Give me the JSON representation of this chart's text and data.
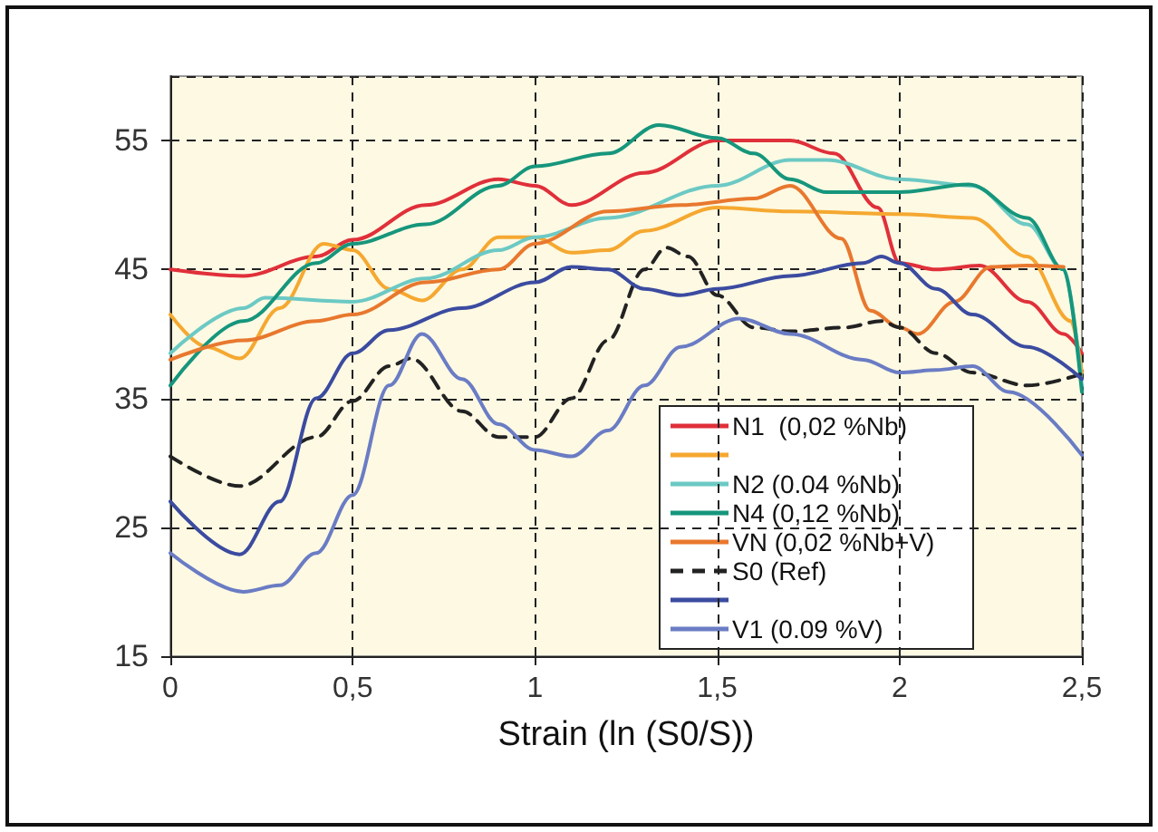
{
  "chart_data": {
    "type": "line",
    "xlabel": "Strain (ln (S0/S))",
    "xlim": [
      0,
      2.5
    ],
    "xticks": [
      {
        "value": 0,
        "label": "0"
      },
      {
        "value": 0.5,
        "label": "0,5"
      },
      {
        "value": 1,
        "label": "1"
      },
      {
        "value": 1.5,
        "label": "1,5"
      },
      {
        "value": 2,
        "label": "2"
      },
      {
        "value": 2.5,
        "label": "2,5"
      }
    ],
    "ylim": [
      15,
      60
    ],
    "yticks": [
      15,
      25,
      35,
      45,
      55
    ],
    "grid": true,
    "legend": "bottom right",
    "line_style": "solid",
    "series": [
      {
        "name": "N1  (0,02 %Nb)",
        "color": "#e0303a",
        "x": [
          0,
          0.2,
          0.4,
          0.5,
          0.7,
          0.9,
          1.0,
          1.1,
          1.3,
          1.5,
          1.7,
          1.82,
          1.94,
          2.0,
          2.1,
          2.22,
          2.35,
          2.45,
          2.5
        ],
        "values": [
          45,
          44.5,
          46,
          47.3,
          50,
          52,
          51.5,
          50,
          52.5,
          55,
          55,
          54,
          49.8,
          45.5,
          45,
          45.3,
          42.5,
          40,
          38.5
        ]
      },
      {
        "color": "#f5a830",
        "x": [
          0,
          0.1,
          0.19,
          0.3,
          0.42,
          0.5,
          0.6,
          0.69,
          0.8,
          0.9,
          1.0,
          1.1,
          1.2,
          1.3,
          1.5,
          1.7,
          2.0,
          2.2,
          2.35,
          2.47,
          2.5
        ],
        "values": [
          41.5,
          39,
          38.1,
          42,
          47,
          46.5,
          43.5,
          42.6,
          45,
          47.5,
          47.5,
          46.3,
          46.5,
          48,
          49.8,
          49.5,
          49.3,
          49,
          46,
          41,
          37
        ]
      },
      {
        "name": "N2 (0.04 %Nb)",
        "color": "#6cc9c4",
        "x": [
          0,
          0.2,
          0.26,
          0.5,
          0.7,
          0.9,
          1.0,
          1.2,
          1.5,
          1.7,
          1.8,
          2.0,
          2.2,
          2.35,
          2.45,
          2.5
        ],
        "values": [
          38.5,
          42,
          42.8,
          42.5,
          44.3,
          46.5,
          47.5,
          49,
          51.5,
          53.5,
          53.5,
          52,
          51.5,
          48.5,
          45,
          36
        ]
      },
      {
        "name": "N4 (0,12 %Nb)",
        "color": "#16967c",
        "x": [
          0,
          0.2,
          0.4,
          0.5,
          0.7,
          0.9,
          1.0,
          1.2,
          1.34,
          1.5,
          1.6,
          1.7,
          1.8,
          2.0,
          2.19,
          2.35,
          2.45,
          2.5
        ],
        "values": [
          36,
          41,
          45.5,
          47,
          48.5,
          51.5,
          53,
          54,
          56.2,
          55.2,
          54,
          52,
          51,
          51,
          51.6,
          49,
          45,
          35.5
        ]
      },
      {
        "name": "VN (0,02 %Nb+V)",
        "color": "#e8782e",
        "x": [
          0,
          0.2,
          0.4,
          0.5,
          0.7,
          0.9,
          1.0,
          1.2,
          1.4,
          1.6,
          1.7,
          1.84,
          1.92,
          2.0,
          2.05,
          2.15,
          2.25,
          2.35,
          2.45
        ],
        "values": [
          38,
          39.5,
          41,
          41.5,
          44,
          45,
          47,
          49.5,
          50,
          50.5,
          51.5,
          47.4,
          41.8,
          40.5,
          40,
          42.5,
          45.2,
          45.3,
          45.2
        ]
      },
      {
        "name": "S0 (Ref)",
        "color": "#222222",
        "line_style": "dashed",
        "x": [
          0,
          0.19,
          0.4,
          0.5,
          0.6,
          0.66,
          0.8,
          0.9,
          1.0,
          1.1,
          1.2,
          1.3,
          1.36,
          1.42,
          1.5,
          1.6,
          1.7,
          1.85,
          1.95,
          2.0,
          2.1,
          2.2,
          2.35,
          2.5
        ],
        "values": [
          30.5,
          28.2,
          32,
          34.8,
          37.5,
          38.1,
          34,
          32,
          32,
          35,
          39.5,
          45,
          46.7,
          46,
          43,
          40.5,
          40.2,
          40.5,
          41,
          40.5,
          38.5,
          37,
          36,
          36.9
        ]
      },
      {
        "color": "#3b4ba0",
        "x": [
          0,
          0.19,
          0.3,
          0.4,
          0.5,
          0.6,
          0.8,
          1.0,
          1.1,
          1.2,
          1.3,
          1.4,
          1.5,
          1.7,
          1.9,
          1.95,
          2.0,
          2.1,
          2.2,
          2.35,
          2.5
        ],
        "values": [
          27,
          22.9,
          27,
          35,
          38.5,
          40.3,
          42,
          44,
          45.2,
          45,
          43.5,
          43,
          43.5,
          44.5,
          45.5,
          46,
          45.5,
          43.5,
          41.5,
          39,
          36.5
        ]
      },
      {
        "name": "V1 (0.09 %V)",
        "color": "#6a7cc4",
        "x": [
          0,
          0.2,
          0.3,
          0.4,
          0.5,
          0.6,
          0.69,
          0.8,
          0.9,
          1.0,
          1.1,
          1.2,
          1.3,
          1.4,
          1.56,
          1.7,
          1.9,
          2.0,
          2.1,
          2.2,
          2.3,
          2.5
        ],
        "values": [
          23,
          20,
          20.5,
          23,
          27.5,
          36,
          40,
          36.5,
          33,
          31,
          30.5,
          32.5,
          36,
          39,
          41.2,
          40,
          38,
          37,
          37.2,
          37.5,
          35.5,
          30.6
        ]
      }
    ]
  }
}
